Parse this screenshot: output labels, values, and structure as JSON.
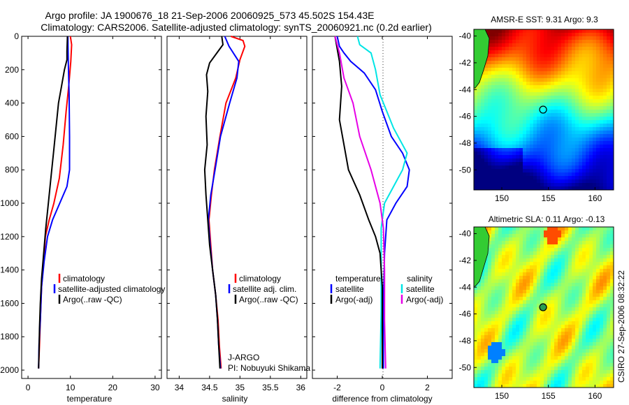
{
  "header": {
    "line1": "Argo profile: JA 1900676_18 21-Sep-2006 20060925_573 45.502S 154.43E",
    "line2": "Climatology: CARS2006. Satellite-adjusted climatology: synTS_20060921.nc (0.2d earlier)"
  },
  "colors": {
    "clim": "#ff0000",
    "sat": "#0000ff",
    "argo": "#000000",
    "sat_s": "#00e5e5",
    "argo_s": "#e600e6"
  },
  "chart_data": [
    {
      "type": "line",
      "xlabel": "temperature",
      "ylabel": "",
      "xlim": [
        -1.5,
        31.5
      ],
      "ylim": [
        2050,
        0
      ],
      "xticks": [
        0,
        10,
        20,
        30
      ],
      "yticks": [
        0,
        200,
        400,
        600,
        800,
        1000,
        1200,
        1400,
        1600,
        1800,
        2000
      ],
      "legend": {
        "placement": "lower-right",
        "entries": [
          "climatology",
          "satellite-adjusted climatology",
          "Argo(..raw -QC)"
        ]
      },
      "series": [
        {
          "key": "clim",
          "color": "#ff0000",
          "points": [
            [
              10.0,
              0
            ],
            [
              10.3,
              50
            ],
            [
              10.1,
              150
            ],
            [
              9.6,
              300
            ],
            [
              9.0,
              450
            ],
            [
              8.3,
              650
            ],
            [
              7.4,
              850
            ],
            [
              6.1,
              1000
            ],
            [
              5.0,
              1100
            ],
            [
              4.1,
              1200
            ],
            [
              3.7,
              1350
            ],
            [
              3.2,
              1500
            ],
            [
              2.9,
              1700
            ],
            [
              2.7,
              1850
            ],
            [
              2.5,
              1990
            ]
          ]
        },
        {
          "key": "sat",
          "color": "#0000ff",
          "points": [
            [
              9.4,
              0
            ],
            [
              9.5,
              150
            ],
            [
              9.7,
              350
            ],
            [
              9.8,
              600
            ],
            [
              9.8,
              800
            ],
            [
              9.2,
              900
            ],
            [
              7.5,
              1000
            ],
            [
              5.8,
              1100
            ],
            [
              4.6,
              1200
            ],
            [
              3.8,
              1350
            ],
            [
              3.2,
              1500
            ],
            [
              2.9,
              1700
            ],
            [
              2.6,
              1850
            ],
            [
              2.5,
              1990
            ]
          ]
        },
        {
          "key": "argo",
          "color": "#000000",
          "points": [
            [
              9.3,
              0
            ],
            [
              9.2,
              90
            ],
            [
              9.2,
              140
            ],
            [
              8.6,
              200
            ],
            [
              7.9,
              300
            ],
            [
              7.2,
              400
            ],
            [
              6.6,
              550
            ],
            [
              6.0,
              700
            ],
            [
              5.4,
              850
            ],
            [
              4.8,
              1000
            ],
            [
              4.2,
              1150
            ],
            [
              3.7,
              1300
            ],
            [
              3.2,
              1450
            ],
            [
              2.9,
              1600
            ],
            [
              2.7,
              1750
            ],
            [
              2.6,
              1900
            ],
            [
              2.5,
              1990
            ]
          ]
        }
      ]
    },
    {
      "type": "line",
      "xlabel": "salinity",
      "ylabel": "",
      "xlim": [
        33.8,
        36.1
      ],
      "ylim": [
        2050,
        0
      ],
      "xticks": [
        34,
        34.5,
        35,
        35.5,
        36
      ],
      "yticks": [
        0,
        200,
        400,
        600,
        800,
        1000,
        1200,
        1400,
        1600,
        1800,
        2000
      ],
      "legend": {
        "placement": "lower-right",
        "entries": [
          "climatology",
          "satellite adj. clim.",
          "Argo(..raw -QC)"
        ]
      },
      "series": [
        {
          "key": "clim",
          "color": "#ff0000",
          "points": [
            [
              34.85,
              0
            ],
            [
              35.05,
              25
            ],
            [
              35.08,
              60
            ],
            [
              35.0,
              140
            ],
            [
              34.93,
              250
            ],
            [
              34.77,
              400
            ],
            [
              34.67,
              600
            ],
            [
              34.58,
              800
            ],
            [
              34.53,
              950
            ],
            [
              34.49,
              1100
            ],
            [
              34.52,
              1250
            ],
            [
              34.55,
              1400
            ],
            [
              34.6,
              1550
            ],
            [
              34.64,
              1700
            ],
            [
              34.66,
              1850
            ],
            [
              34.69,
              1990
            ]
          ]
        },
        {
          "key": "sat",
          "color": "#0000ff",
          "points": [
            [
              34.75,
              0
            ],
            [
              34.82,
              60
            ],
            [
              34.98,
              150
            ],
            [
              34.95,
              250
            ],
            [
              34.83,
              400
            ],
            [
              34.68,
              600
            ],
            [
              34.59,
              800
            ],
            [
              34.52,
              950
            ],
            [
              34.48,
              1100
            ],
            [
              34.51,
              1250
            ],
            [
              34.55,
              1400
            ],
            [
              34.6,
              1550
            ],
            [
              34.63,
              1700
            ],
            [
              34.65,
              1850
            ],
            [
              34.68,
              1990
            ]
          ]
        },
        {
          "key": "argo",
          "color": "#000000",
          "points": [
            [
              34.7,
              0
            ],
            [
              34.72,
              50
            ],
            [
              34.62,
              100
            ],
            [
              34.5,
              160
            ],
            [
              34.45,
              230
            ],
            [
              34.47,
              330
            ],
            [
              34.44,
              480
            ],
            [
              34.46,
              650
            ],
            [
              34.42,
              800
            ],
            [
              34.44,
              950
            ],
            [
              34.47,
              1100
            ],
            [
              34.5,
              1250
            ],
            [
              34.55,
              1400
            ],
            [
              34.6,
              1550
            ],
            [
              34.63,
              1700
            ],
            [
              34.65,
              1850
            ],
            [
              34.67,
              1990
            ]
          ]
        }
      ]
    },
    {
      "type": "line",
      "xlabel": "difference from climatology",
      "ylabel": "",
      "xlim": [
        -3.1,
        3.1
      ],
      "ylim": [
        2050,
        0
      ],
      "xticks": [
        -2,
        0,
        2
      ],
      "yticks": [
        0,
        200,
        400,
        600,
        800,
        1000,
        1200,
        1400,
        1600,
        1800,
        2000
      ],
      "legend": {
        "placement": "lower-right",
        "columns": [
          {
            "header": "temperature",
            "entries": [
              "satellite",
              "Argo(-adj)"
            ]
          },
          {
            "header": "salinity",
            "entries": [
              "satellite",
              "Argo(-adj)"
            ]
          }
        ]
      },
      "series": [
        {
          "key": "sat_t",
          "color": "#0000ff",
          "points": [
            [
              -2.0,
              0
            ],
            [
              -1.9,
              60
            ],
            [
              -1.7,
              100
            ],
            [
              -1.4,
              150
            ],
            [
              -0.8,
              220
            ],
            [
              -0.3,
              320
            ],
            [
              0.0,
              450
            ],
            [
              0.4,
              600
            ],
            [
              0.9,
              700
            ],
            [
              1.2,
              800
            ],
            [
              1.1,
              900
            ],
            [
              0.6,
              1000
            ],
            [
              0.2,
              1100
            ],
            [
              0.1,
              1300
            ],
            [
              0.05,
              1600
            ],
            [
              0.05,
              1990
            ]
          ]
        },
        {
          "key": "sat_s",
          "color": "#00e5e5",
          "points": [
            [
              -1.1,
              0
            ],
            [
              -1.0,
              50
            ],
            [
              -0.5,
              100
            ],
            [
              -0.3,
              200
            ],
            [
              -0.1,
              350
            ],
            [
              0.2,
              450
            ],
            [
              0.5,
              550
            ],
            [
              1.1,
              700
            ],
            [
              0.9,
              800
            ],
            [
              0.5,
              900
            ],
            [
              0.1,
              1000
            ],
            [
              -0.05,
              1150
            ],
            [
              -0.05,
              1350
            ],
            [
              -0.05,
              1650
            ],
            [
              -0.1,
              1990
            ]
          ]
        },
        {
          "key": "argo_t",
          "color": "#000000",
          "points": [
            [
              -2.1,
              0
            ],
            [
              -1.9,
              150
            ],
            [
              -1.8,
              300
            ],
            [
              -1.9,
              500
            ],
            [
              -1.7,
              650
            ],
            [
              -1.5,
              800
            ],
            [
              -1.0,
              950
            ],
            [
              -0.6,
              1100
            ],
            [
              -0.3,
              1200
            ],
            [
              -0.1,
              1300
            ],
            [
              0.0,
              1500
            ],
            [
              0.0,
              1990
            ]
          ]
        },
        {
          "key": "argo_s",
          "color": "#e600e6",
          "points": [
            [
              -2.1,
              0
            ],
            [
              -1.9,
              100
            ],
            [
              -1.7,
              250
            ],
            [
              -1.3,
              400
            ],
            [
              -1.0,
              600
            ],
            [
              -0.5,
              800
            ],
            [
              -0.1,
              1000
            ],
            [
              0.05,
              1150
            ],
            [
              0.1,
              1400
            ],
            [
              0.1,
              1700
            ],
            [
              0.15,
              1990
            ]
          ]
        }
      ]
    }
  ],
  "maps": [
    {
      "title": "AMSR-E SST: 9.31  Argo: 9.3",
      "xticks": [
        150,
        155,
        160
      ],
      "yticks": [
        -40,
        -42,
        -44,
        -46,
        -48,
        -50
      ],
      "xlim": [
        147,
        162
      ],
      "ylim": [
        -51.5,
        -39.5
      ],
      "marker": {
        "lon": 154.43,
        "lat": -45.5
      },
      "colormap": "jet",
      "kind": "sst"
    },
    {
      "title": "Altimetric SLA: 0.11  Argo: -0.13",
      "xticks": [
        150,
        155,
        160
      ],
      "yticks": [
        -40,
        -42,
        -44,
        -46,
        -48,
        -50
      ],
      "xlim": [
        147,
        162
      ],
      "ylim": [
        -51.5,
        -39.5
      ],
      "marker": {
        "lon": 154.43,
        "lat": -45.5
      },
      "colormap": "jet",
      "kind": "sla"
    }
  ],
  "annotations": {
    "institute": "J-ARGO",
    "pi": "PI: Nobuyuki Shikama",
    "credit": "CSIRO 27-Sep-2006 08:32:22"
  }
}
